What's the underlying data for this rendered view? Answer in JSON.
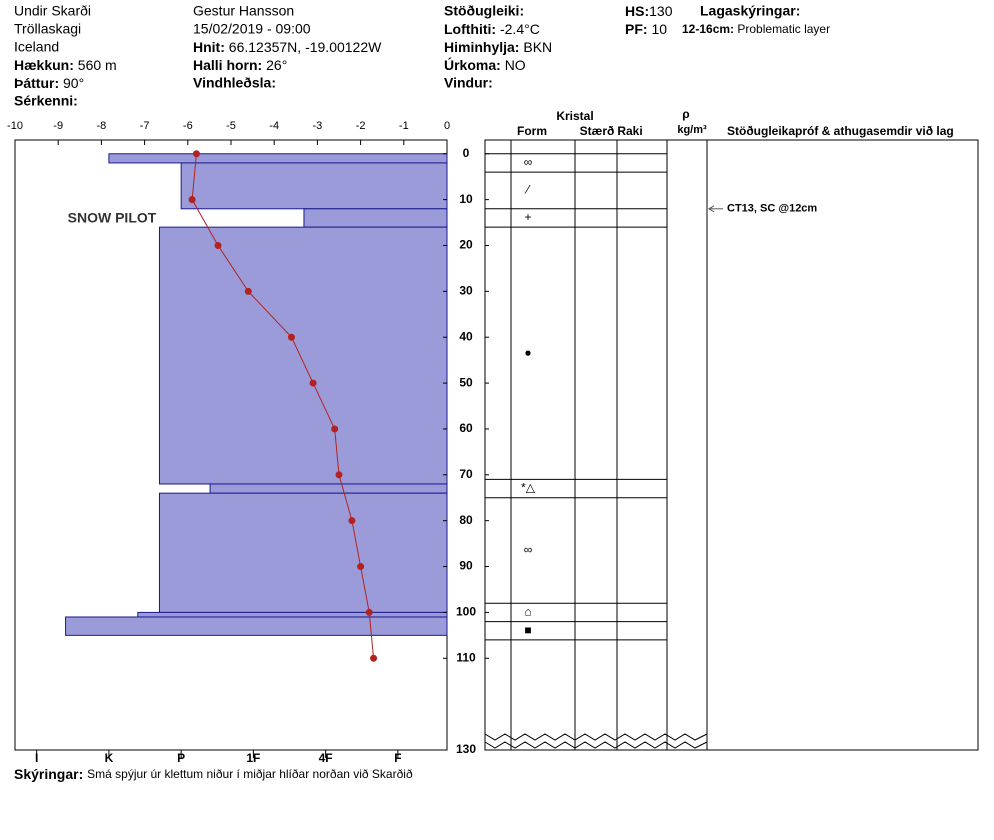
{
  "header": {
    "location": "Undir Skarði",
    "range": "Tröllaskagi",
    "country": "Iceland",
    "elevation": {
      "label": "Hækkun:",
      "value": "560 m"
    },
    "aspect": {
      "label": "Þáttur:",
      "value": "90°"
    },
    "features": {
      "label": "Sérkenni:"
    },
    "observer": "Gestur Hansson",
    "datetime": "15/02/2019 - 09:00",
    "coordinates": {
      "label": "Hnit:",
      "value": "66.12357N, -19.00122W"
    },
    "slope": {
      "label": "Halli horn:",
      "value": "26°"
    },
    "wind_loading": {
      "label": "Vindhleðsla:"
    },
    "stability": {
      "label": "Stöðugleiki:"
    },
    "air_temp": {
      "label": "Lofthiti:",
      "value": "-2.4°C"
    },
    "sky": {
      "label": "Himinhylja:",
      "value": "BKN"
    },
    "precip": {
      "label": "Úrkoma:",
      "value": "NO"
    },
    "wind": {
      "label": "Vindur:"
    },
    "hs": {
      "label": "HS:",
      "value": 130
    },
    "pf": {
      "label": "PF:",
      "value": 10
    },
    "layer_notes_title": "Lagaskýringar:",
    "layer_note": {
      "label": "12-16cm:",
      "value": "Problematic layer"
    }
  },
  "chart_data": {
    "type": "profile",
    "watermark": "SNOW PILOT",
    "xlim": [
      -10,
      0
    ],
    "xticks": [
      -10,
      -9,
      -8,
      -7,
      -6,
      -5,
      -4,
      -3,
      -2,
      -1,
      0
    ],
    "ylim": [
      -3,
      130
    ],
    "yticks": [
      0,
      10,
      20,
      30,
      40,
      50,
      60,
      70,
      80,
      90,
      100,
      110,
      130
    ],
    "temperature": {
      "color": "#b22222",
      "depths": [
        0,
        10,
        20,
        30,
        40,
        50,
        60,
        70,
        80,
        90,
        100,
        110
      ],
      "values": [
        -5.8,
        -5.9,
        -5.3,
        -4.6,
        -3.6,
        -3.1,
        -2.6,
        -2.5,
        -2.2,
        -2.0,
        -1.8,
        -1.7
      ]
    },
    "hardness": {
      "color": "#9b9bd9",
      "hlim": [
        0.32,
        6.3
      ],
      "ticks": [
        {
          "value": 1,
          "label": "F"
        },
        {
          "value": 2,
          "label": "4F"
        },
        {
          "value": 3,
          "label": "1F"
        },
        {
          "value": 4,
          "label": "P"
        },
        {
          "value": 5,
          "label": "K"
        },
        {
          "value": 6,
          "label": "I"
        }
      ],
      "tops": [
        0,
        2,
        12,
        16,
        72,
        74,
        100,
        101
      ],
      "bottoms": [
        2,
        12,
        16,
        72,
        74,
        100,
        101,
        105
      ],
      "values": [
        5,
        4,
        2.3,
        4.3,
        3.6,
        4.3,
        4.6,
        5.6
      ]
    }
  },
  "crystals": {
    "title": "Kristal",
    "form": "Form",
    "size": "Stærð",
    "moisture": "Raki",
    "density": "ρ",
    "density_unit": "kg/m³",
    "comments": "Stöðugleikapróf & athugasemdir við lag",
    "boundaries": [
      0,
      4,
      12,
      16,
      71,
      75,
      98,
      102,
      106
    ],
    "forms": [
      "∞",
      "⁄",
      "+",
      "●",
      "*△",
      "∞",
      "⌂",
      "■"
    ],
    "test": {
      "depth": 12,
      "text": "CT13, SC @12cm"
    }
  },
  "notes": {
    "label": "Skýringar:",
    "value": "Smá spýjur úr klettum niður í miðjar hlíðar norðan við Skarðið"
  }
}
